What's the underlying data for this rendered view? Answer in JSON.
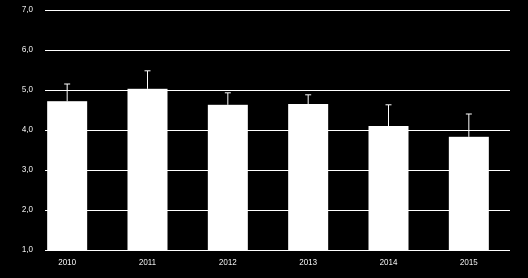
{
  "chart_data": {
    "type": "bar",
    "categories": [
      "2010",
      "2011",
      "2012",
      "2013",
      "2014",
      "2015"
    ],
    "values": [
      4.72,
      5.03,
      4.63,
      4.65,
      4.1,
      3.83
    ],
    "errors": [
      0.43,
      0.45,
      0.3,
      0.23,
      0.53,
      0.57
    ],
    "color": "#ffffff",
    "background": "#000000",
    "ylim": [
      1,
      7
    ],
    "yticks": [
      {
        "value": 1,
        "label": "1,0"
      },
      {
        "value": 2,
        "label": "2,0"
      },
      {
        "value": 3,
        "label": "3,0"
      },
      {
        "value": 4,
        "label": "4,0"
      },
      {
        "value": 5,
        "label": "5,0"
      },
      {
        "value": 6,
        "label": "6,0"
      },
      {
        "value": 7,
        "label": "7,0"
      }
    ],
    "grid": true
  }
}
